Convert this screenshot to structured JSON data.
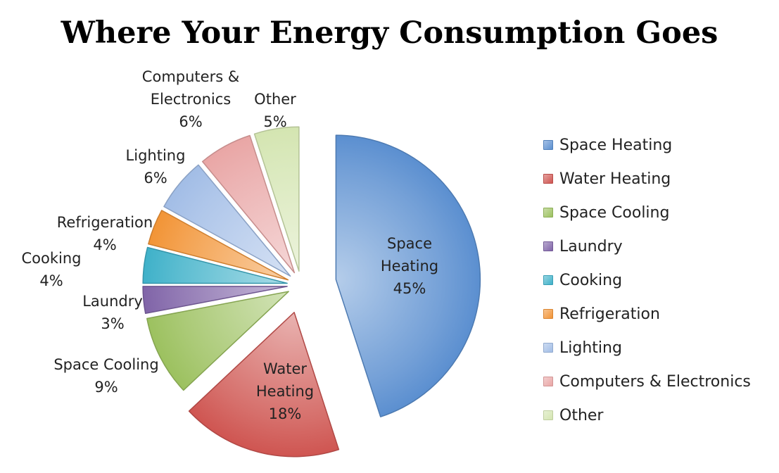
{
  "chart_data": {
    "type": "pie",
    "title": "Where Your Energy Consumption Goes",
    "legend_position": "right",
    "exploded": true,
    "slices": [
      {
        "name": "Space Heating",
        "value": 45,
        "label": "45%",
        "color": "#5b8fd0"
      },
      {
        "name": "Water Heating",
        "value": 18,
        "label": "18%",
        "color": "#cf5551"
      },
      {
        "name": "Space Cooling",
        "value": 9,
        "label": "9%",
        "color": "#9cc15f"
      },
      {
        "name": "Laundry",
        "value": 3,
        "label": "3%",
        "color": "#8064a8"
      },
      {
        "name": "Cooking",
        "value": 4,
        "label": "4%",
        "color": "#3fb1c9"
      },
      {
        "name": "Refrigeration",
        "value": 4,
        "label": "4%",
        "color": "#f29436"
      },
      {
        "name": "Lighting",
        "value": 6,
        "label": "6%",
        "color": "#a2bde6"
      },
      {
        "name": "Computers & Electronics",
        "value": 6,
        "label": "6%",
        "color": "#e9a6a5"
      },
      {
        "name": "Other",
        "value": 5,
        "label": "5%",
        "color": "#d4e5b1"
      }
    ]
  }
}
